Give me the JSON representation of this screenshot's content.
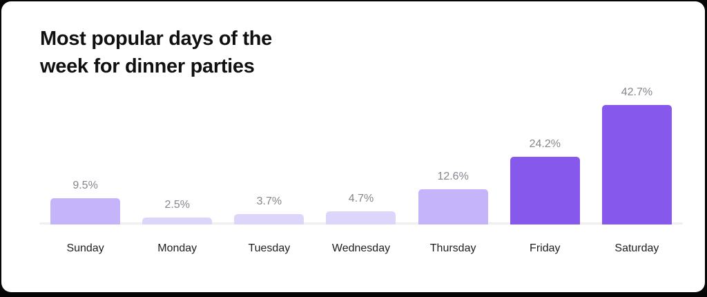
{
  "chart_data": {
    "type": "bar",
    "title": "Most popular days of the week for dinner parties",
    "title_line1": "Most popular days of the",
    "title_line2": "week for dinner parties",
    "categories": [
      "Sunday",
      "Monday",
      "Tuesday",
      "Wednesday",
      "Thursday",
      "Friday",
      "Saturday"
    ],
    "values": [
      9.5,
      2.5,
      3.7,
      4.7,
      12.6,
      24.2,
      42.7
    ],
    "value_labels": [
      "9.5%",
      "2.5%",
      "3.7%",
      "4.7%",
      "12.6%",
      "24.2%",
      "42.7%"
    ],
    "unit": "%",
    "ylim": [
      0,
      42.7
    ],
    "grid": false,
    "legend": false,
    "xlabel": "",
    "ylabel": "",
    "bar_colors": [
      "#c6b4fa",
      "#ded6fa",
      "#ded6fa",
      "#ded6fa",
      "#c6b4fa",
      "#8659ec",
      "#8659ec"
    ]
  },
  "colors": {
    "frame_background": "#050505",
    "card_background": "#ffffff",
    "title_text": "#101010",
    "value_label_text": "#85858d",
    "category_label_text": "#1e1e1e",
    "axis_line": "#efeff1",
    "accent_light": "#ded6fa",
    "accent_medium": "#c6b4fa",
    "accent_bright": "#8659ec"
  }
}
